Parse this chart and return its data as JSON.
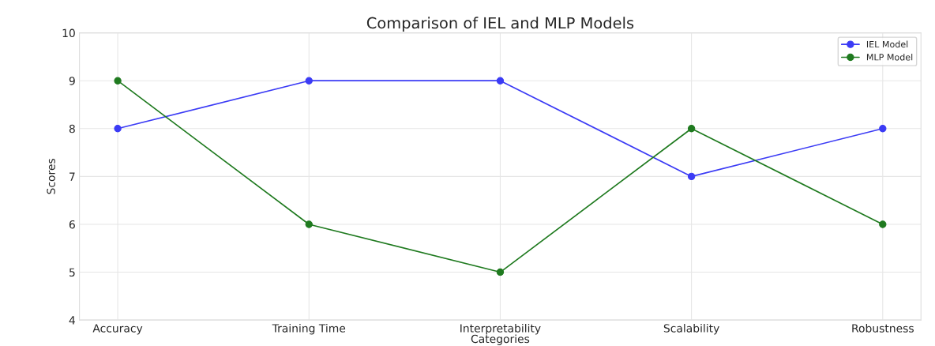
{
  "chart_data": {
    "type": "line",
    "title": "Comparison of IEL and MLP Models",
    "xlabel": "Categories",
    "ylabel": "Scores",
    "categories": [
      "Accuracy",
      "Training Time",
      "Interpretability",
      "Scalability",
      "Robustness"
    ],
    "series": [
      {
        "name": "IEL Model",
        "color": "#3b3bf5",
        "values": [
          8,
          9,
          9,
          7,
          8
        ]
      },
      {
        "name": "MLP Model",
        "color": "#1f7a1f",
        "values": [
          9,
          6,
          5,
          8,
          6
        ]
      }
    ],
    "ylim": [
      4,
      10
    ],
    "yticks": [
      4,
      5,
      6,
      7,
      8,
      9,
      10
    ],
    "grid": true,
    "legend": "top right",
    "marker": "circle",
    "line_style": "solid"
  }
}
